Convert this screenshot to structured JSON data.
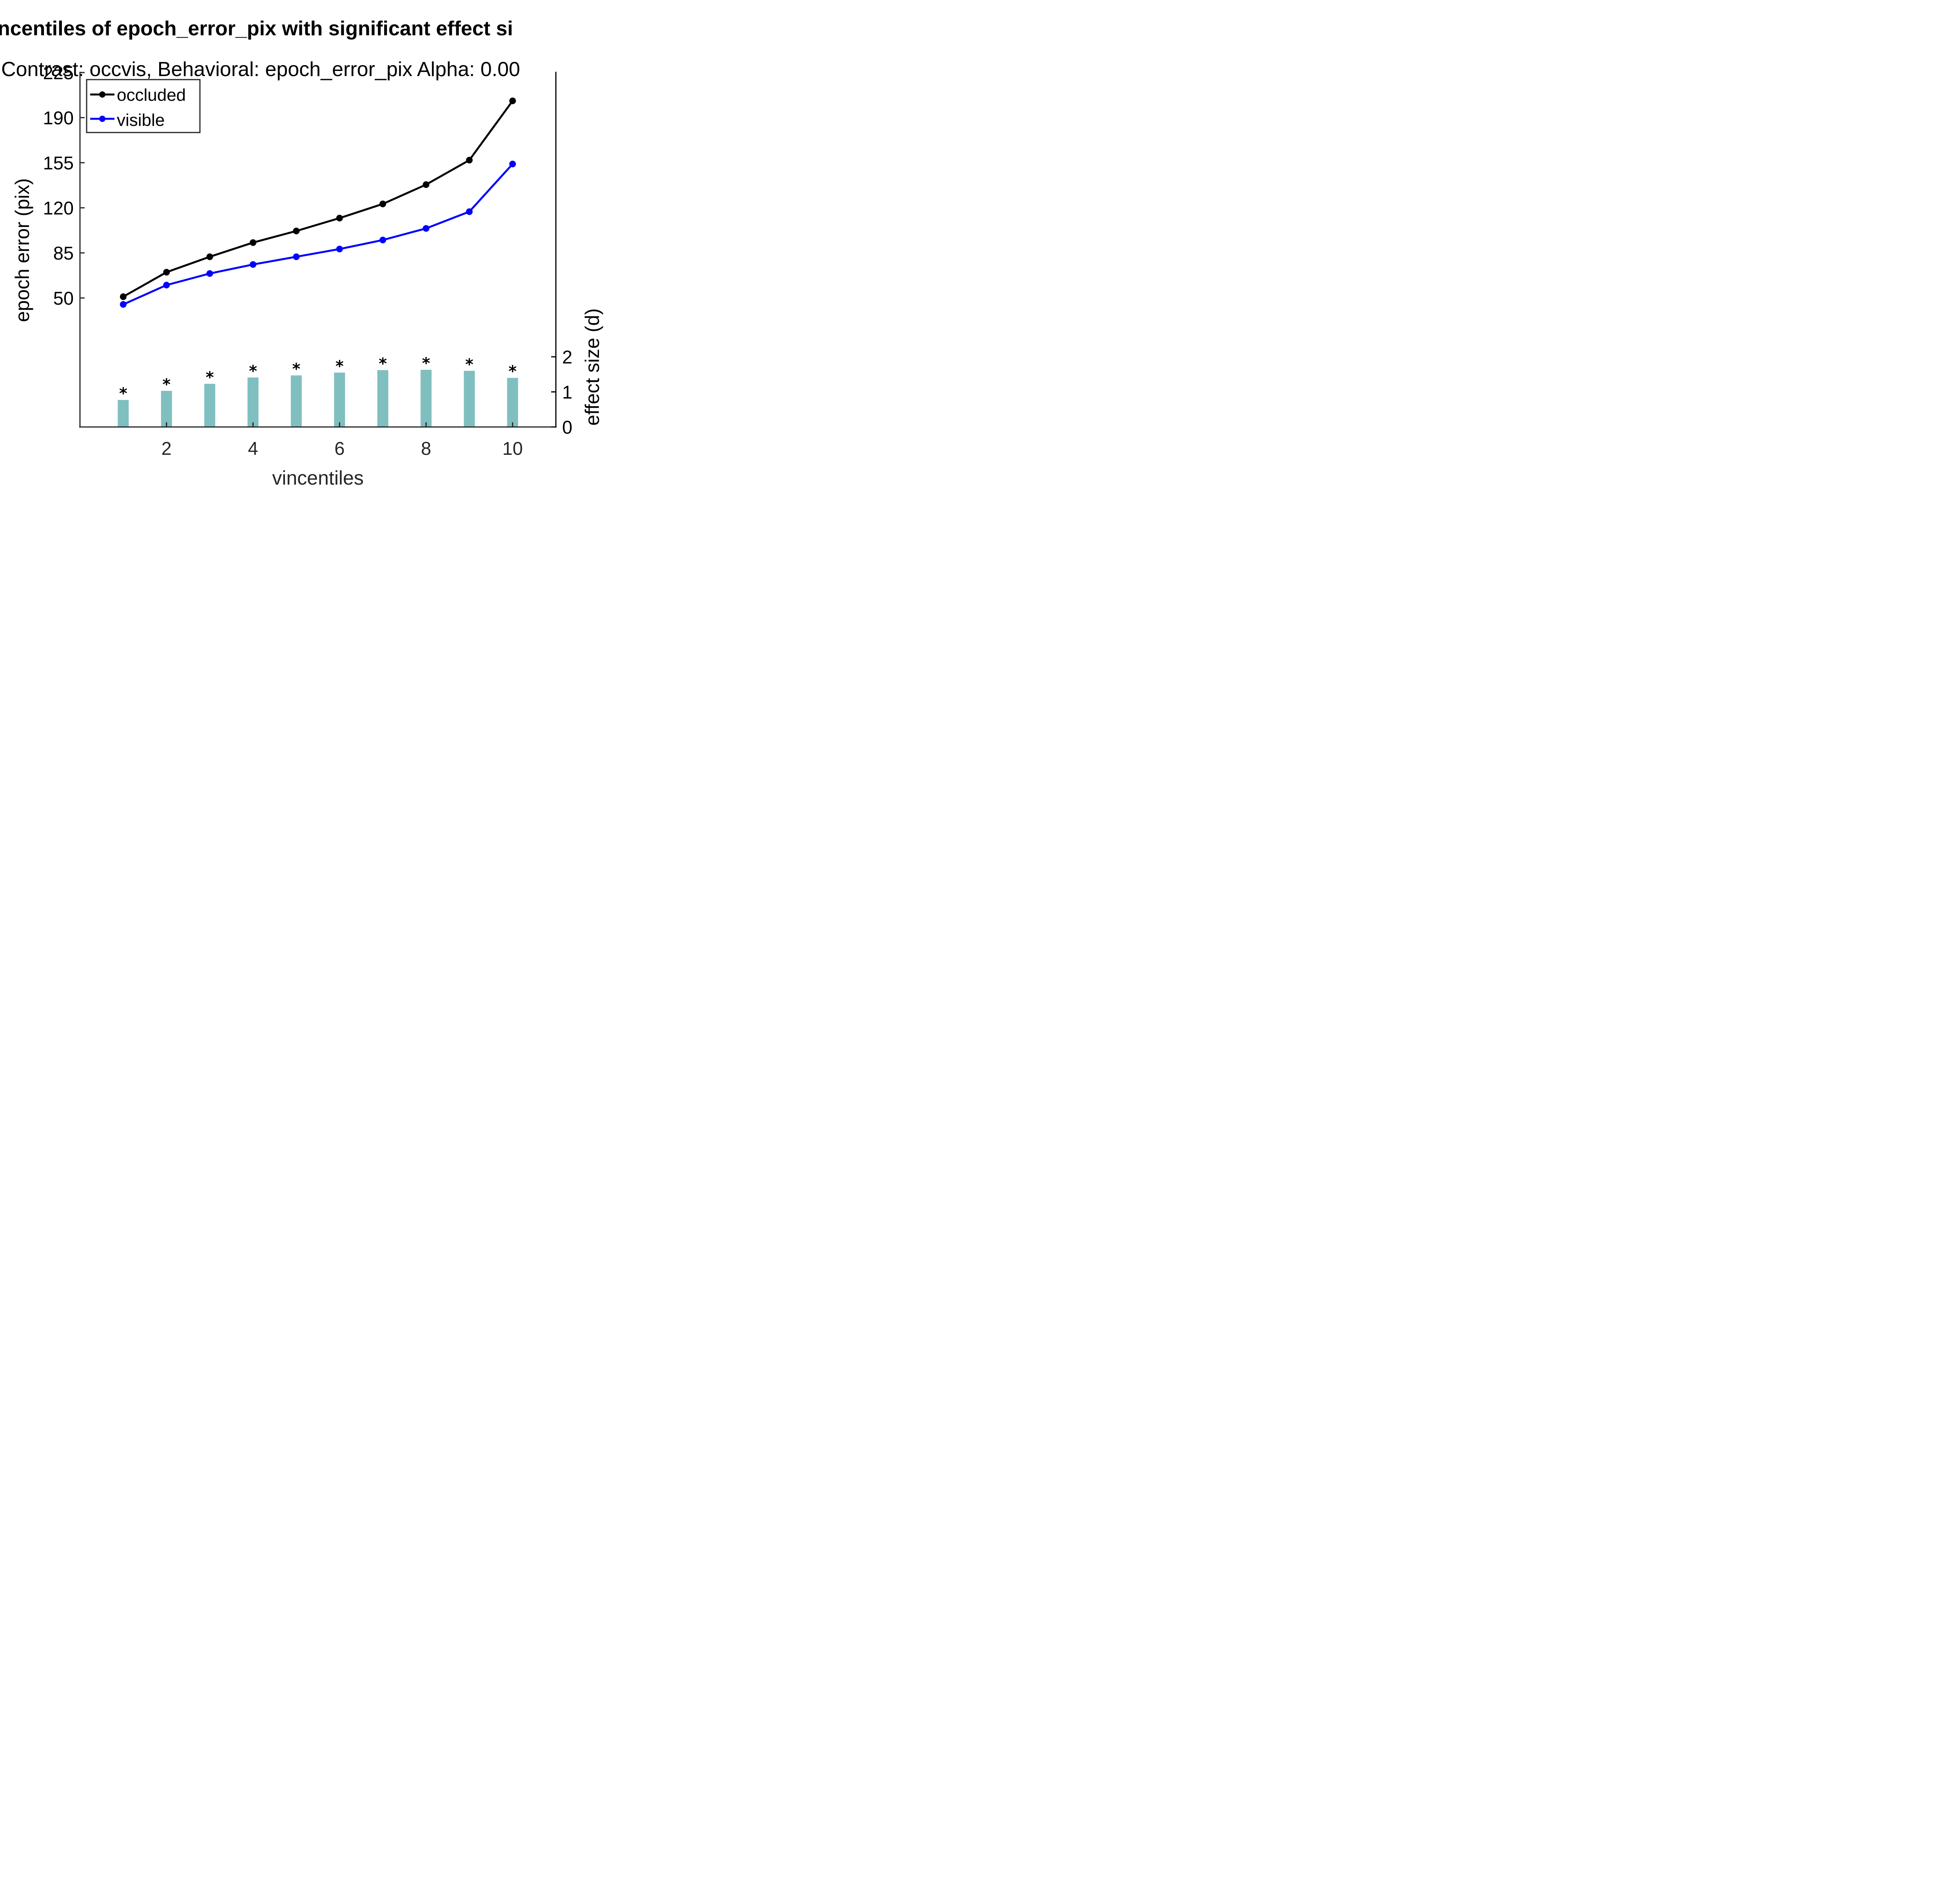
{
  "chart_data": {
    "type": "line",
    "title": "ncentiles of epoch_error_pix with significant effect si",
    "subtitle": "Contrast: occvis, Behavioral: epoch_error_pix Alpha: 0.00",
    "xlabel": "vincentiles",
    "ylabel_left": "epoch error (pix)",
    "ylabel_right": "effect size (d)",
    "x": [
      1,
      2,
      3,
      4,
      5,
      6,
      7,
      8,
      9,
      10
    ],
    "xlim": [
      0,
      11
    ],
    "x_ticks": [
      "2",
      "4",
      "6",
      "8",
      "10"
    ],
    "y_ticks_left": [
      "50",
      "85",
      "120",
      "155",
      "190",
      "225"
    ],
    "y_ticks_right": [
      "0",
      "1",
      "2"
    ],
    "series": [
      {
        "name": "occluded",
        "color": "#000000",
        "values": [
          51,
          70,
          82,
          93,
          102,
          112,
          123,
          138,
          157,
          203
        ]
      },
      {
        "name": "visible",
        "color": "#0000ff",
        "values": [
          45,
          60,
          69,
          76,
          82,
          88,
          95,
          104,
          117,
          154
        ]
      }
    ],
    "effect_size": {
      "type": "bar",
      "color": "#80bfbf",
      "values": [
        0.77,
        1.03,
        1.23,
        1.41,
        1.47,
        1.55,
        1.62,
        1.63,
        1.6,
        1.4
      ],
      "significance_marker": "*",
      "significant": [
        true,
        true,
        true,
        true,
        true,
        true,
        true,
        true,
        true,
        true
      ]
    },
    "legend_position": "top-left",
    "grid": false
  }
}
